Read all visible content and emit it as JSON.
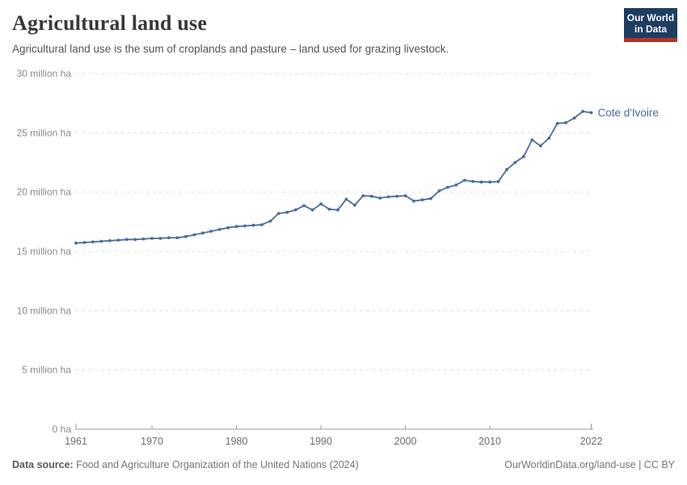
{
  "header": {
    "title": "Agricultural land use",
    "subtitle": "Agricultural land use is the sum of croplands and pasture – land used for grazing livestock.",
    "logo": {
      "line1": "Our World",
      "line2": "in Data"
    }
  },
  "chart_data": {
    "type": "line",
    "title": "Agricultural land use",
    "unit": "million ha",
    "xlabel": "",
    "ylabel": "",
    "xlim": [
      1961,
      2022
    ],
    "ylim": [
      0,
      30
    ],
    "grid": "horizontal-dashed",
    "legend_position": "end-of-line-label",
    "x": [
      1961,
      1962,
      1963,
      1964,
      1965,
      1966,
      1967,
      1968,
      1969,
      1970,
      1971,
      1972,
      1973,
      1974,
      1975,
      1976,
      1977,
      1978,
      1979,
      1980,
      1981,
      1982,
      1983,
      1984,
      1985,
      1986,
      1987,
      1988,
      1989,
      1990,
      1991,
      1992,
      1993,
      1994,
      1995,
      1996,
      1997,
      1998,
      1999,
      2000,
      2001,
      2002,
      2003,
      2004,
      2005,
      2006,
      2007,
      2008,
      2009,
      2010,
      2011,
      2012,
      2013,
      2014,
      2015,
      2016,
      2017,
      2018,
      2019,
      2020,
      2021,
      2022
    ],
    "series": [
      {
        "name": "Cote d'Ivoire",
        "color": "#4c6a9c",
        "values": [
          15.7,
          15.75,
          15.8,
          15.85,
          15.9,
          15.95,
          16.0,
          16.0,
          16.05,
          16.1,
          16.1,
          16.15,
          16.15,
          16.25,
          16.4,
          16.55,
          16.7,
          16.85,
          17.0,
          17.1,
          17.15,
          17.2,
          17.25,
          17.55,
          18.2,
          18.3,
          18.5,
          18.85,
          18.5,
          19.0,
          18.55,
          18.5,
          19.4,
          18.9,
          19.7,
          19.65,
          19.5,
          19.6,
          19.65,
          19.7,
          19.25,
          19.35,
          19.45,
          20.1,
          20.4,
          20.6,
          21.0,
          20.9,
          20.85,
          20.85,
          20.9,
          21.9,
          22.5,
          23.0,
          24.4,
          23.9,
          24.55,
          25.8,
          25.85,
          26.25,
          26.8,
          26.7
        ]
      }
    ],
    "y_ticks": [
      {
        "value": 0,
        "label": "0 ha"
      },
      {
        "value": 5,
        "label": "5 million ha"
      },
      {
        "value": 10,
        "label": "10 million ha"
      },
      {
        "value": 15,
        "label": "15 million ha"
      },
      {
        "value": 20,
        "label": "20 million ha"
      },
      {
        "value": 25,
        "label": "25 million ha"
      },
      {
        "value": 30,
        "label": "30 million ha"
      }
    ],
    "x_ticks": [
      {
        "value": 1961,
        "label": "1961"
      },
      {
        "value": 1970,
        "label": "1970"
      },
      {
        "value": 1980,
        "label": "1980"
      },
      {
        "value": 1990,
        "label": "1990"
      },
      {
        "value": 2000,
        "label": "2000"
      },
      {
        "value": 2010,
        "label": "2010"
      },
      {
        "value": 2022,
        "label": "2022"
      }
    ]
  },
  "footer": {
    "data_source_label": "Data source:",
    "data_source_value": " Food and Agriculture Organization of the United Nations (2024)",
    "attribution": "OurWorldinData.org/land-use | CC BY"
  },
  "colors": {
    "series_blue": "#4c6a9c",
    "grid": "#e0e0e0",
    "axis": "#999999",
    "y_tick_label": "#8a8a8a",
    "x_tick_label": "#6b6b6b",
    "logo_bg": "#1d3d63",
    "logo_accent": "#b13328"
  }
}
